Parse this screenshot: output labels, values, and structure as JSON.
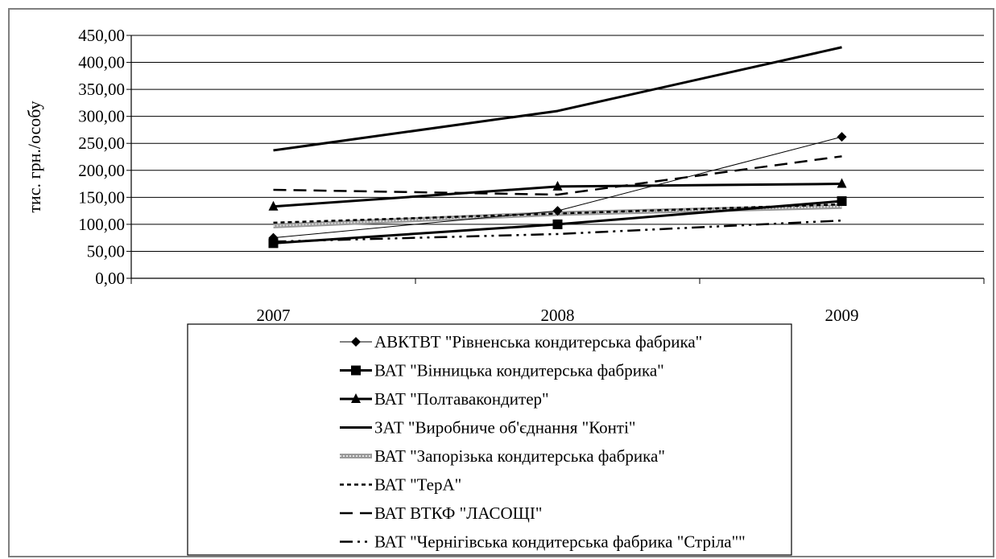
{
  "chart_data": {
    "type": "line",
    "ylabel": "тис. грн./особу",
    "categories": [
      "2007",
      "2008",
      "2009"
    ],
    "ylim": [
      0,
      450
    ],
    "y_ticks": [
      "0,00",
      "50,00",
      "100,00",
      "150,00",
      "200,00",
      "250,00",
      "300,00",
      "350,00",
      "400,00",
      "450,00"
    ],
    "grid": true,
    "legend_position": "bottom",
    "series": [
      {
        "name": "АВКТВТ \"Рівненська кондитерська фабрика\"",
        "values": [
          75,
          125,
          262
        ],
        "style": "thin-diamond"
      },
      {
        "name": "ВАТ \"Вінницька кондитерська фабрика\"",
        "values": [
          65,
          100,
          143
        ],
        "style": "bold-square"
      },
      {
        "name": "ВАТ \"Полтавакондитер\"",
        "values": [
          133,
          170,
          175
        ],
        "style": "bold-triangle"
      },
      {
        "name": "ЗАТ \"Виробниче об'єднання \"Конті\"",
        "values": [
          237,
          310,
          428
        ],
        "style": "bold-solid"
      },
      {
        "name": "ВАТ \"Запорізька кондитерська фабрика\"",
        "values": [
          97,
          120,
          133
        ],
        "style": "grey-thick"
      },
      {
        "name": "ВАТ \"ТерА\"",
        "values": [
          103,
          120,
          137
        ],
        "style": "dotted"
      },
      {
        "name": "ВАТ ВТКФ \"ЛАСОЩІ\"",
        "values": [
          164,
          155,
          226
        ],
        "style": "dashed"
      },
      {
        "name": "ВАТ \"Чернігівська кондитерська фабрика \"Стріла\"\"",
        "values": [
          68,
          82,
          107
        ],
        "style": "dashdotdot"
      }
    ]
  }
}
